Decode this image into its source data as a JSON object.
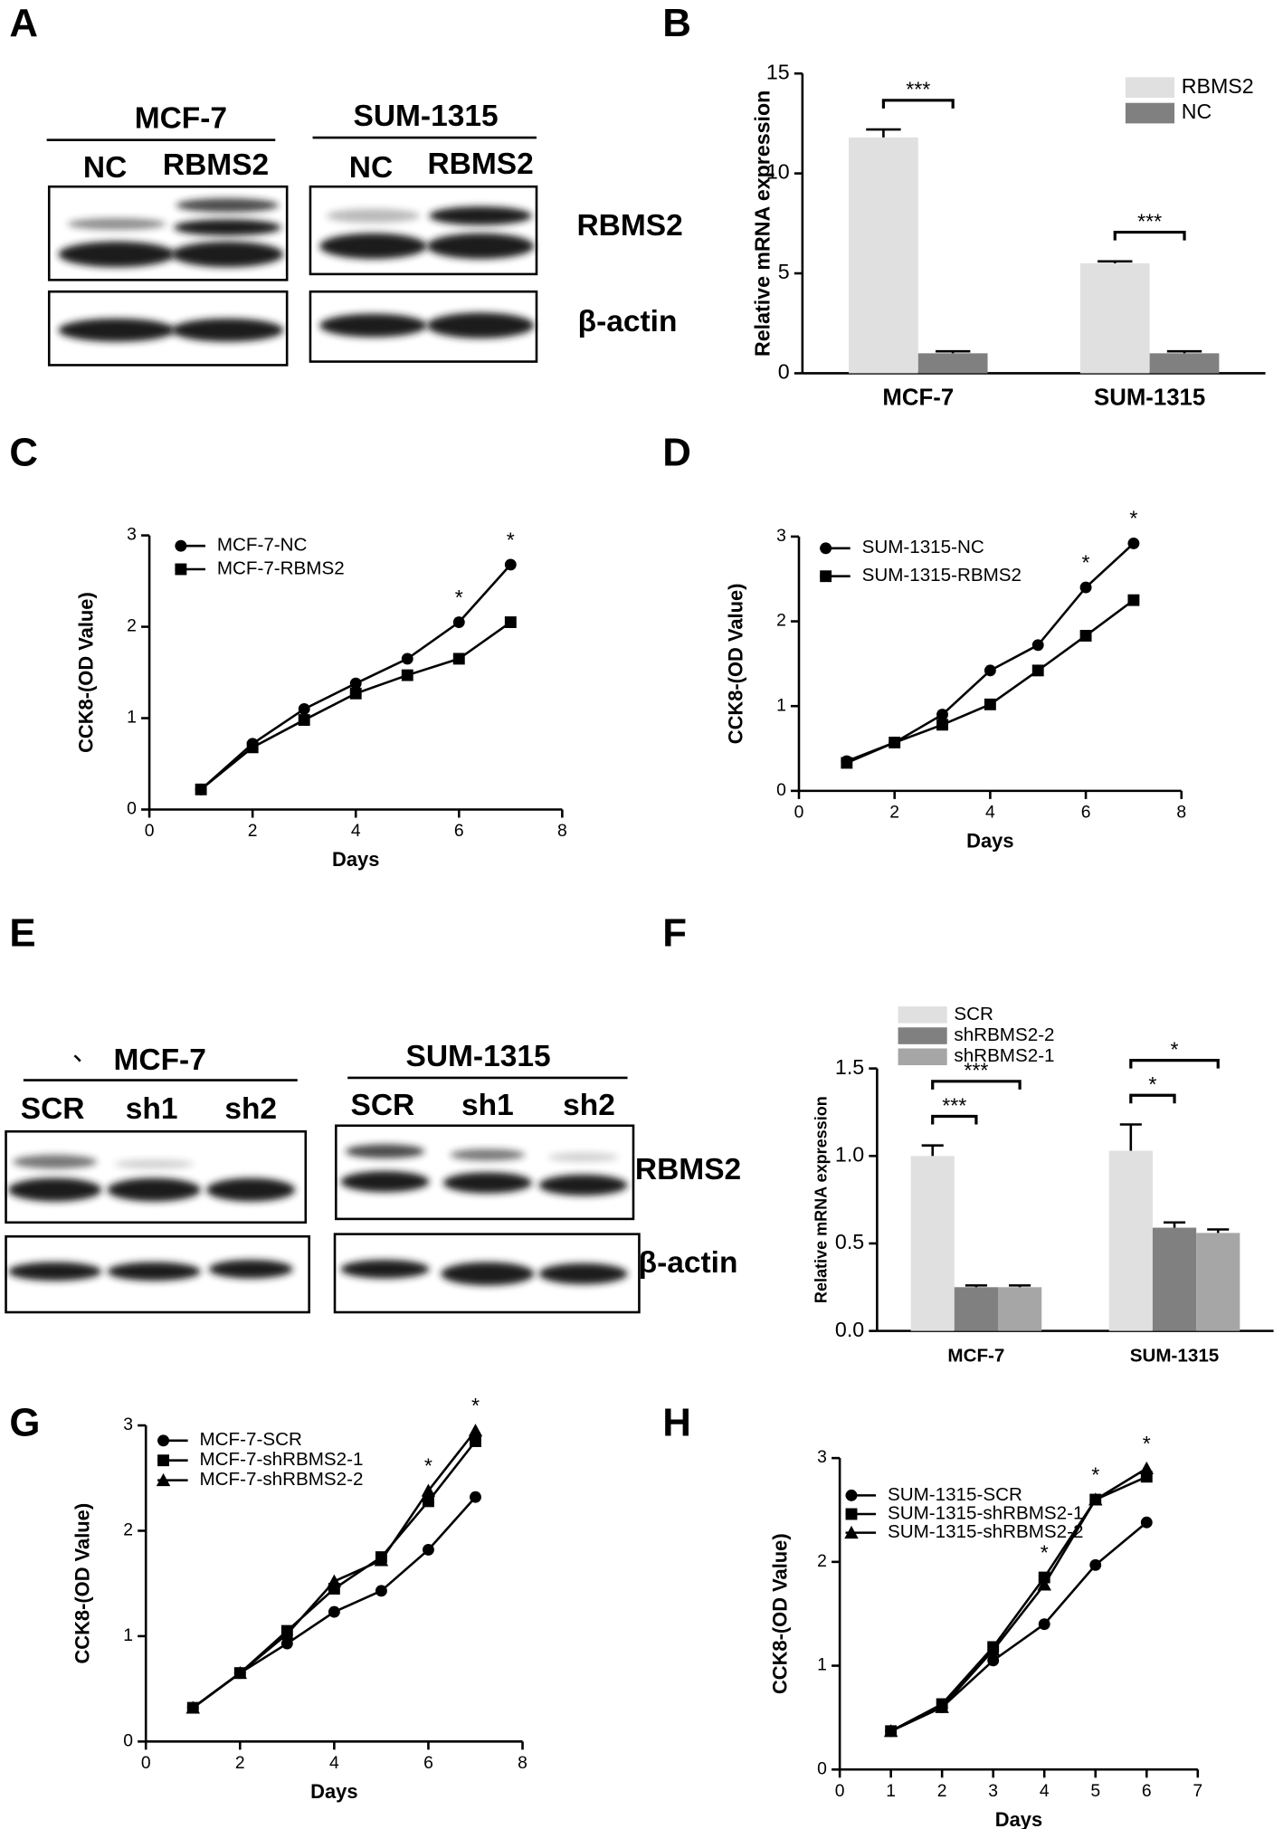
{
  "panels": [
    "A",
    "B",
    "C",
    "D",
    "E",
    "F",
    "G",
    "H"
  ],
  "blots": [
    {
      "cell_lines": [
        {
          "name": "MCF-7",
          "lanes": [
            "NC",
            "RBMS2"
          ]
        },
        {
          "name": "SUM-1315",
          "lanes": [
            "NC",
            "RBMS2"
          ]
        }
      ],
      "bands": [
        "RBMS2",
        "β-actin"
      ]
    },
    {
      "mark": "、",
      "cell_lines": [
        {
          "name": "MCF-7",
          "lanes": [
            "SCR",
            "sh1",
            "sh2"
          ]
        },
        {
          "name": "SUM-1315",
          "lanes": [
            "SCR",
            "sh1",
            "sh2"
          ]
        }
      ],
      "bands": [
        "RBMS2",
        "β-actin"
      ]
    }
  ],
  "chart_data": [
    {
      "type": "bar",
      "ylabel": "Relative mRNA expression",
      "categories": [
        "MCF-7",
        "SUM-1315"
      ],
      "series": [
        {
          "name": "RBMS2",
          "color": "#e0e0e0",
          "values": [
            11.8,
            5.5
          ],
          "errors": [
            0.4,
            0.1
          ]
        },
        {
          "name": "NC",
          "color": "#808080",
          "values": [
            1.0,
            1.0
          ],
          "errors": [
            0.1,
            0.1
          ]
        }
      ],
      "ylim": [
        0,
        15
      ],
      "yticks": [
        0,
        5,
        10,
        15
      ],
      "significance": [
        [
          "***"
        ],
        [
          "***"
        ]
      ]
    },
    {
      "type": "line",
      "xlabel": "Days",
      "ylabel": "CCK8-(OD Value)",
      "x": [
        1,
        2,
        3,
        4,
        5,
        6,
        7
      ],
      "series": [
        {
          "name": "MCF-7-NC",
          "color": "#000000",
          "marker": "circle",
          "values": [
            0.22,
            0.72,
            1.1,
            1.38,
            1.65,
            2.05,
            2.68
          ]
        },
        {
          "name": "MCF-7-RBMS2",
          "color": "#000000",
          "marker": "square",
          "values": [
            0.22,
            0.68,
            0.98,
            1.27,
            1.47,
            1.65,
            2.05
          ]
        }
      ],
      "xlim": [
        0,
        8
      ],
      "xticks": [
        0,
        2,
        4,
        6,
        8
      ],
      "ylim": [
        0,
        3
      ],
      "yticks": [
        0,
        1,
        2,
        3
      ],
      "annotations": [
        {
          "x": 6,
          "text": "*"
        },
        {
          "x": 7,
          "text": "*"
        }
      ]
    },
    {
      "type": "line",
      "xlabel": "Days",
      "ylabel": "CCK8-(OD Value)",
      "x": [
        1,
        2,
        3,
        4,
        5,
        6,
        7
      ],
      "series": [
        {
          "name": "SUM-1315-NC",
          "color": "#000000",
          "marker": "circle",
          "values": [
            0.35,
            0.57,
            0.9,
            1.42,
            1.72,
            2.4,
            2.92
          ]
        },
        {
          "name": "SUM-1315-RBMS2",
          "color": "#000000",
          "marker": "square",
          "values": [
            0.33,
            0.57,
            0.78,
            1.02,
            1.42,
            1.83,
            2.25
          ]
        }
      ],
      "xlim": [
        0,
        8
      ],
      "xticks": [
        0,
        2,
        4,
        6,
        8
      ],
      "ylim": [
        0,
        3
      ],
      "yticks": [
        0,
        1,
        2,
        3
      ],
      "annotations": [
        {
          "x": 6,
          "text": "*"
        },
        {
          "x": 7,
          "text": "*"
        }
      ]
    },
    {
      "type": "bar",
      "ylabel": "Relative mRNA expression",
      "categories": [
        "MCF-7",
        "SUM-1315"
      ],
      "series": [
        {
          "name": "SCR",
          "color": "#e0e0e0",
          "values": [
            1.0,
            1.03
          ],
          "errors": [
            0.06,
            0.15
          ]
        },
        {
          "name": "shRBMS2-2",
          "color": "#808080",
          "values": [
            0.25,
            0.59
          ],
          "errors": [
            0.01,
            0.03
          ]
        },
        {
          "name": "shRBMS2-1",
          "color": "#a6a6a6",
          "values": [
            0.25,
            0.56
          ],
          "errors": [
            0.01,
            0.02
          ]
        }
      ],
      "ylim": [
        0,
        1.5
      ],
      "yticks": [
        {
          "value": 0,
          "label": "0.0"
        },
        0.5,
        {
          "value": 1,
          "label": "1.0"
        },
        1.5
      ],
      "significance": [
        [
          "***",
          "***"
        ],
        [
          "*",
          "*"
        ]
      ]
    },
    {
      "type": "line",
      "xlabel": "Days",
      "ylabel": "CCK8-(OD Value)",
      "x": [
        1,
        2,
        3,
        4,
        5,
        6,
        7
      ],
      "series": [
        {
          "name": "MCF-7-SCR",
          "color": "#000000",
          "marker": "circle",
          "values": [
            0.32,
            0.65,
            0.93,
            1.23,
            1.43,
            1.82,
            2.32
          ]
        },
        {
          "name": "MCF-7-shRBMS2-1",
          "color": "#000000",
          "marker": "square",
          "values": [
            0.32,
            0.65,
            1.05,
            1.45,
            1.75,
            2.28,
            2.85
          ]
        },
        {
          "name": "MCF-7-shRBMS2-2",
          "color": "#000000",
          "marker": "triangle",
          "values": [
            0.32,
            0.65,
            1.02,
            1.52,
            1.72,
            2.38,
            2.95
          ]
        }
      ],
      "xlim": [
        0,
        8
      ],
      "xticks": [
        0,
        2,
        4,
        6,
        8
      ],
      "ylim": [
        0,
        3
      ],
      "yticks": [
        0,
        1,
        2,
        3
      ],
      "annotations": [
        {
          "x": 6,
          "text": "*"
        },
        {
          "x": 7,
          "text": "*"
        }
      ]
    },
    {
      "type": "line",
      "xlabel": "Days",
      "ylabel": "CCK8-(OD Value)",
      "x": [
        1,
        2,
        3,
        4,
        5,
        6
      ],
      "series": [
        {
          "name": "SUM-1315-SCR",
          "color": "#000000",
          "marker": "circle",
          "values": [
            0.37,
            0.6,
            1.05,
            1.4,
            1.97,
            2.38
          ]
        },
        {
          "name": "SUM-1315-shRBMS2-1",
          "color": "#000000",
          "marker": "square",
          "values": [
            0.37,
            0.63,
            1.18,
            1.85,
            2.6,
            2.82
          ]
        },
        {
          "name": "SUM-1315-shRBMS2-2",
          "color": "#000000",
          "marker": "triangle",
          "values": [
            0.37,
            0.6,
            1.15,
            1.78,
            2.6,
            2.9
          ]
        }
      ],
      "xlim": [
        0,
        7
      ],
      "xticks": [
        0,
        1,
        2,
        3,
        4,
        5,
        6,
        7
      ],
      "ylim": [
        0,
        3
      ],
      "yticks": [
        0,
        1,
        2,
        3
      ],
      "annotations": [
        {
          "x": 4,
          "text": "*"
        },
        {
          "x": 5,
          "text": "*"
        },
        {
          "x": 6,
          "text": "*"
        }
      ]
    }
  ]
}
